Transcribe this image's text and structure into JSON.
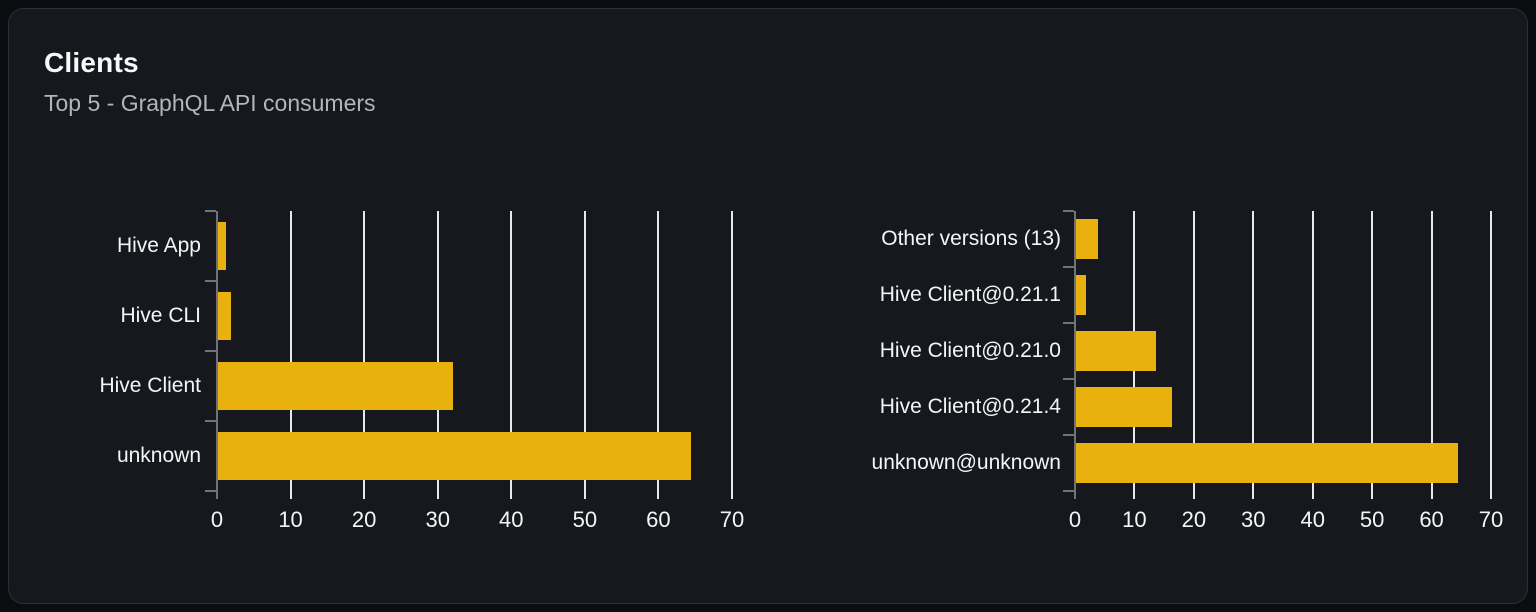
{
  "card": {
    "title": "Clients",
    "subtitle": "Top 5 - GraphQL API consumers"
  },
  "colors": {
    "page_background": "#0b0d10",
    "card_background": "#16181d",
    "card_border": "#2c2f35",
    "title_text": "#f7f8f9",
    "subtitle_text": "#b2b5bb",
    "bar": "#e9b10d",
    "gridline": "#e4e8ef",
    "axis_line": "#6f737b",
    "axis_label_text": "#f4f5f7"
  },
  "chart_data": [
    {
      "type": "bar",
      "orientation": "horizontal",
      "title": "",
      "categories_top_to_bottom": [
        "Hive App",
        "Hive CLI",
        "Hive Client",
        "unknown"
      ],
      "values": [
        1.2,
        1.9,
        32.1,
        64.4
      ],
      "xlim": [
        0,
        70
      ],
      "xticks": [
        0,
        10,
        20,
        30,
        40,
        50,
        60,
        70
      ],
      "grid": true,
      "legend": false
    },
    {
      "type": "bar",
      "orientation": "horizontal",
      "title": "",
      "categories_top_to_bottom": [
        "Other versions (13)",
        "Hive Client@0.21.1",
        "Hive Client@0.21.0",
        "Hive Client@0.21.4",
        "unknown@unknown"
      ],
      "values": [
        3.9,
        1.8,
        13.7,
        16.4,
        64.4
      ],
      "xlim": [
        0,
        70
      ],
      "xticks": [
        0,
        10,
        20,
        30,
        40,
        50,
        60,
        70
      ],
      "grid": true,
      "legend": false
    }
  ]
}
